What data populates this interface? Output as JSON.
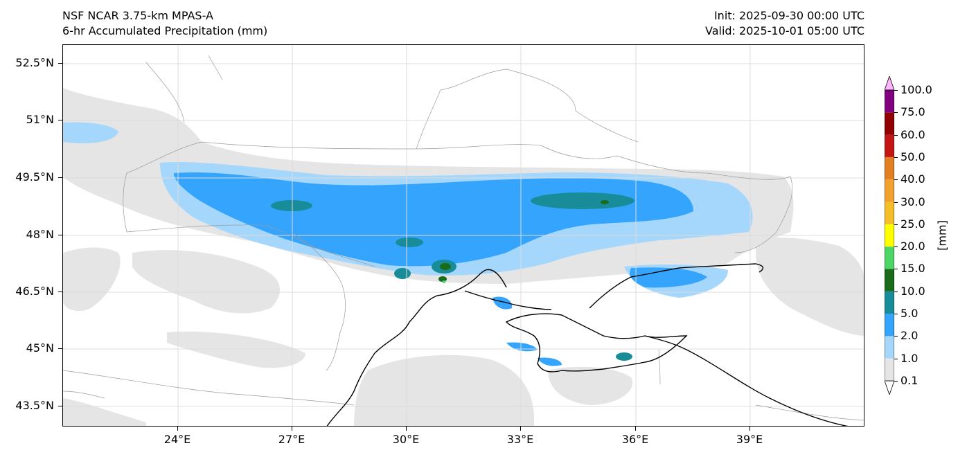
{
  "header": {
    "model_title": "NSF NCAR 3.75-km MPAS-A",
    "field_title": "6-hr Accumulated Precipitation (mm)",
    "init_text": "Init: 2025-09-30 00:00 UTC",
    "valid_text": "Valid: 2025-10-01 05:00 UTC"
  },
  "axes": {
    "lat_labels": [
      "52.5°N",
      "51°N",
      "49.5°N",
      "48°N",
      "46.5°N",
      "45°N",
      "43.5°N"
    ],
    "lon_labels": [
      "24°E",
      "27°E",
      "30°E",
      "33°E",
      "36°E",
      "39°E"
    ]
  },
  "colorbar": {
    "units_label": "[mm]",
    "levels": [
      "0.1",
      "1.0",
      "2.0",
      "5.0",
      "10.0",
      "15.0",
      "20.0",
      "25.0",
      "30.0",
      "40.0",
      "50.0",
      "60.0",
      "75.0",
      "100.0"
    ],
    "colors": [
      "#e5e5e5",
      "#a5d7fd",
      "#35a4fc",
      "#188c99",
      "#1a6b1a",
      "#4dd565",
      "#ffff00",
      "#f5be28",
      "#f2a02e",
      "#e37f23",
      "#c41515",
      "#900000",
      "#800080",
      "#ff54ff"
    ],
    "under_color": "#ffffff",
    "over_color": "#ffb4ff"
  },
  "map_colors": {
    "coastline": "#000000",
    "borders": "#9a9a9a",
    "gridlines": "#dcdcdc"
  }
}
